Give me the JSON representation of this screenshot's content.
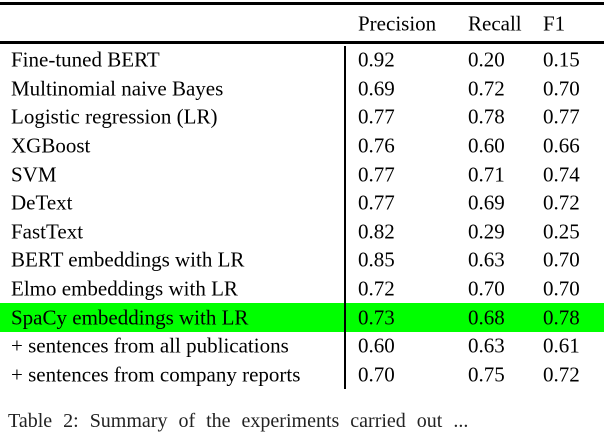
{
  "chart_data": {
    "type": "table",
    "columns": [
      "Precision",
      "Recall",
      "F1"
    ],
    "rows": [
      {
        "label": "Fine-tuned BERT",
        "precision": "0.92",
        "recall": "0.20",
        "f1": "0.15",
        "highlighted": false
      },
      {
        "label": "Multinomial naive Bayes",
        "precision": "0.69",
        "recall": "0.72",
        "f1": "0.70",
        "highlighted": false
      },
      {
        "label": "Logistic regression (LR)",
        "precision": "0.77",
        "recall": "0.78",
        "f1": "0.77",
        "highlighted": false
      },
      {
        "label": "XGBoost",
        "precision": "0.76",
        "recall": "0.60",
        "f1": "0.66",
        "highlighted": false
      },
      {
        "label": "SVM",
        "precision": "0.77",
        "recall": "0.71",
        "f1": "0.74",
        "highlighted": false
      },
      {
        "label": "DeText",
        "precision": "0.77",
        "recall": "0.69",
        "f1": "0.72",
        "highlighted": false
      },
      {
        "label": "FastText",
        "precision": "0.82",
        "recall": "0.29",
        "f1": "0.25",
        "highlighted": false
      },
      {
        "label": "BERT embeddings with LR",
        "precision": "0.85",
        "recall": "0.63",
        "f1": "0.70",
        "highlighted": false
      },
      {
        "label": "Elmo embeddings with LR",
        "precision": "0.72",
        "recall": "0.70",
        "f1": "0.70",
        "highlighted": false
      },
      {
        "label": "SpaCy embeddings with LR",
        "precision": "0.73",
        "recall": "0.68",
        "f1": "0.78",
        "highlighted": true
      },
      {
        "label": "+ sentences from all publications",
        "precision": "0.60",
        "recall": "0.63",
        "f1": "0.61",
        "highlighted": false
      },
      {
        "label": "+ sentences from company reports",
        "precision": "0.70",
        "recall": "0.75",
        "f1": "0.72",
        "highlighted": false
      }
    ],
    "highlight_color": "#00ff00",
    "highlighted_row": "SpaCy embeddings with LR"
  },
  "caption": {
    "visible_fragment": "Table 2: Summary of the experiments carried out ..."
  }
}
